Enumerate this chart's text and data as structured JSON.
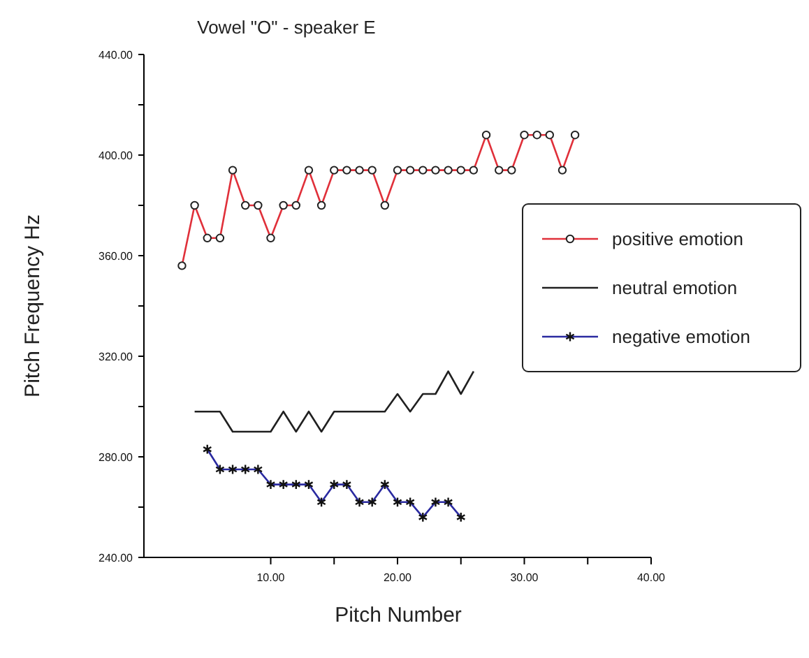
{
  "chart_data": {
    "type": "line",
    "title": "Vowel \"O\" - speaker E",
    "xlabel": "Pitch Number",
    "ylabel": "Pitch Frequency Hz",
    "xlim": [
      0,
      40
    ],
    "xticks": [
      {
        "value": 10,
        "label": "10.00"
      },
      {
        "value": 15,
        "label": null
      },
      {
        "value": 20,
        "label": "20.00"
      },
      {
        "value": 25,
        "label": null
      },
      {
        "value": 30,
        "label": "30.00"
      },
      {
        "value": 35,
        "label": null
      },
      {
        "value": 40,
        "label": "40.00"
      }
    ],
    "ylim": [
      240,
      440
    ],
    "yticks": [
      {
        "value": 240,
        "label": "240.00"
      },
      {
        "value": 260,
        "label": null
      },
      {
        "value": 280,
        "label": "280.00"
      },
      {
        "value": 300,
        "label": null
      },
      {
        "value": 320,
        "label": "320.00"
      },
      {
        "value": 340,
        "label": null
      },
      {
        "value": 360,
        "label": "360.00"
      },
      {
        "value": 380,
        "label": null
      },
      {
        "value": 400,
        "label": "400.00"
      },
      {
        "value": 420,
        "label": null
      },
      {
        "value": 440,
        "label": "440.00"
      }
    ],
    "grid": false,
    "legend": "right",
    "line_style": "solid",
    "series": [
      {
        "name": "positive emotion",
        "color": "#e0303a",
        "marker": "circle",
        "x": [
          3,
          4,
          5,
          6,
          7,
          8,
          9,
          10,
          11,
          12,
          13,
          14,
          15,
          16,
          17,
          18,
          19,
          20,
          21,
          22,
          23,
          24,
          25,
          26,
          27,
          28,
          29,
          30,
          31,
          32,
          33,
          34
        ],
        "values": [
          356,
          380,
          367,
          367,
          394,
          380,
          380,
          367,
          380,
          380,
          394,
          380,
          394,
          394,
          394,
          394,
          380,
          394,
          394,
          394,
          394,
          394,
          394,
          394,
          408,
          394,
          394,
          408,
          408,
          408,
          394,
          408
        ]
      },
      {
        "name": "neutral emotion",
        "color": "#202020",
        "marker": "none",
        "x": [
          4,
          5,
          6,
          7,
          8,
          9,
          10,
          11,
          12,
          13,
          14,
          15,
          16,
          17,
          18,
          19,
          20,
          21,
          22,
          23,
          24,
          25,
          26
        ],
        "values": [
          298,
          298,
          298,
          290,
          290,
          290,
          290,
          298,
          290,
          298,
          290,
          298,
          298,
          298,
          298,
          298,
          305,
          298,
          305,
          305,
          314,
          305,
          314
        ]
      },
      {
        "name": "negative emotion",
        "color": "#2a2aa0",
        "marker": "cross",
        "x": [
          5,
          6,
          7,
          8,
          9,
          10,
          11,
          12,
          13,
          14,
          15,
          16,
          17,
          18,
          19,
          20,
          21,
          22,
          23,
          24,
          25
        ],
        "values": [
          283,
          275,
          275,
          275,
          275,
          269,
          269,
          269,
          269,
          262,
          269,
          269,
          262,
          262,
          269,
          262,
          262,
          256,
          262,
          262,
          256
        ]
      }
    ]
  }
}
